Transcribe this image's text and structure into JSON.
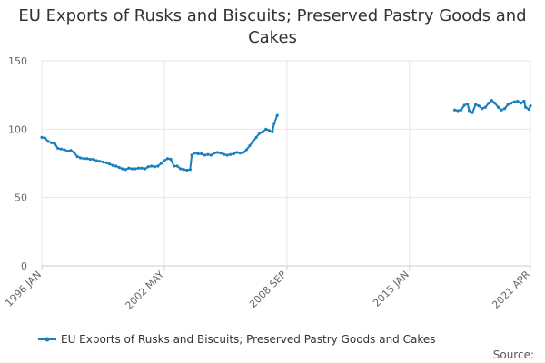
{
  "chart_data": {
    "type": "line",
    "title": "EU Exports of Rusks and Biscuits; Preserved Pastry Goods and Cakes",
    "xlabel": "",
    "ylabel": "",
    "ylim": [
      0,
      150
    ],
    "yticks": [
      0,
      50,
      100,
      150
    ],
    "xlim": [
      "1996-01",
      "2021-04"
    ],
    "xticks": [
      {
        "date": "1996-01",
        "label": "1996 JAN"
      },
      {
        "date": "2002-05",
        "label": "2002 MAY"
      },
      {
        "date": "2008-09",
        "label": "2008 SEP"
      },
      {
        "date": "2015-01",
        "label": "2015 JAN"
      },
      {
        "date": "2021-04",
        "label": "2021 APR"
      }
    ],
    "grid": true,
    "legend_position": "bottom",
    "colors": {
      "series": "#1a7fbf",
      "grid": "#e6e6e6",
      "axis": "#cccccc"
    },
    "series": [
      {
        "name": "EU Exports of Rusks and Biscuits; Preserved Pastry Goods and Cakes",
        "points": [
          [
            "1996-01",
            94
          ],
          [
            "1996-03",
            93.5
          ],
          [
            "1996-05",
            91
          ],
          [
            "1996-07",
            90
          ],
          [
            "1996-09",
            89.5
          ],
          [
            "1996-11",
            86
          ],
          [
            "1997-01",
            85.5
          ],
          [
            "1997-03",
            85
          ],
          [
            "1997-05",
            84
          ],
          [
            "1997-07",
            84.5
          ],
          [
            "1997-09",
            83
          ],
          [
            "1997-11",
            80
          ],
          [
            "1998-01",
            79
          ],
          [
            "1998-03",
            78.5
          ],
          [
            "1998-05",
            78.5
          ],
          [
            "1998-07",
            78
          ],
          [
            "1998-09",
            78
          ],
          [
            "1998-11",
            77
          ],
          [
            "1999-01",
            76.5
          ],
          [
            "1999-03",
            76
          ],
          [
            "1999-05",
            75.5
          ],
          [
            "1999-07",
            74.5
          ],
          [
            "1999-09",
            73.5
          ],
          [
            "1999-11",
            73
          ],
          [
            "2000-01",
            72
          ],
          [
            "2000-03",
            71
          ],
          [
            "2000-05",
            70.5
          ],
          [
            "2000-07",
            71.5
          ],
          [
            "2000-09",
            71
          ],
          [
            "2000-11",
            71
          ],
          [
            "2001-01",
            71.5
          ],
          [
            "2001-03",
            71.5
          ],
          [
            "2001-05",
            71
          ],
          [
            "2001-07",
            72.5
          ],
          [
            "2001-09",
            73
          ],
          [
            "2001-11",
            72.5
          ],
          [
            "2002-01",
            73
          ],
          [
            "2002-03",
            75
          ],
          [
            "2002-05",
            77
          ],
          [
            "2002-07",
            78.5
          ],
          [
            "2002-09",
            78
          ],
          [
            "2002-11",
            73
          ],
          [
            "2003-01",
            73
          ],
          [
            "2003-03",
            71
          ],
          [
            "2003-05",
            70.5
          ],
          [
            "2003-07",
            70
          ],
          [
            "2003-09",
            70.5
          ],
          [
            "2003-10",
            81
          ],
          [
            "2003-12",
            82.5
          ],
          [
            "2004-02",
            82
          ],
          [
            "2004-04",
            82
          ],
          [
            "2004-06",
            81
          ],
          [
            "2004-08",
            81.5
          ],
          [
            "2004-10",
            81
          ],
          [
            "2004-12",
            82.5
          ],
          [
            "2005-02",
            83
          ],
          [
            "2005-04",
            82.5
          ],
          [
            "2005-06",
            81.5
          ],
          [
            "2005-08",
            81
          ],
          [
            "2005-10",
            81.5
          ],
          [
            "2005-12",
            82
          ],
          [
            "2006-02",
            83
          ],
          [
            "2006-04",
            82.5
          ],
          [
            "2006-06",
            83
          ],
          [
            "2006-08",
            85
          ],
          [
            "2006-10",
            88
          ],
          [
            "2006-12",
            91
          ],
          [
            "2007-02",
            94
          ],
          [
            "2007-04",
            97
          ],
          [
            "2007-06",
            98
          ],
          [
            "2007-08",
            100
          ],
          [
            "2007-10",
            99
          ],
          [
            "2007-12",
            98
          ],
          [
            "2008-01",
            104
          ],
          [
            "2008-03",
            110
          ]
        ]
      },
      {
        "name": "EU Exports of Rusks and Biscuits; Preserved Pastry Goods and Cakes",
        "points": [
          [
            "2017-05",
            114
          ],
          [
            "2017-07",
            113.5
          ],
          [
            "2017-09",
            114
          ],
          [
            "2017-11",
            117.5
          ],
          [
            "2018-01",
            118.5
          ],
          [
            "2018-02",
            113.5
          ],
          [
            "2018-04",
            112
          ],
          [
            "2018-06",
            118
          ],
          [
            "2018-08",
            117
          ],
          [
            "2018-10",
            115
          ],
          [
            "2018-12",
            116
          ],
          [
            "2019-02",
            119
          ],
          [
            "2019-04",
            121
          ],
          [
            "2019-06",
            119
          ],
          [
            "2019-08",
            116
          ],
          [
            "2019-10",
            114
          ],
          [
            "2019-12",
            115
          ],
          [
            "2020-02",
            118
          ],
          [
            "2020-04",
            119
          ],
          [
            "2020-06",
            120
          ],
          [
            "2020-08",
            120.5
          ],
          [
            "2020-10",
            119
          ],
          [
            "2020-12",
            120.5
          ],
          [
            "2021-01",
            116
          ],
          [
            "2021-03",
            114.5
          ],
          [
            "2021-04",
            117
          ]
        ]
      }
    ],
    "legend": "EU Exports of Rusks and Biscuits; Preserved Pastry Goods and Cakes",
    "source": "Source:"
  }
}
